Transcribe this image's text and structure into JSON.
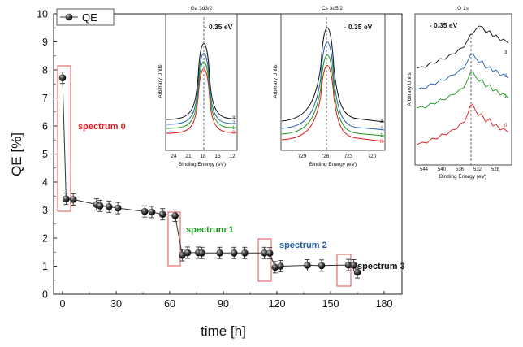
{
  "colors": {
    "red": "#e01818",
    "green": "#1a9a1a",
    "blue": "#1f5fa8",
    "black": "#111111",
    "box": "#e05050"
  },
  "chart_data": [
    {
      "type": "scatter",
      "xlabel": "time [h]",
      "ylabel": "QE [%]",
      "xlim": [
        -5,
        190
      ],
      "ylim": [
        0,
        10
      ],
      "xticks": [
        "0",
        "30",
        "60",
        "90",
        "120",
        "150",
        "180"
      ],
      "yticks": [
        "0",
        "1",
        "2",
        "3",
        "4",
        "5",
        "6",
        "7",
        "8",
        "9",
        "10"
      ],
      "legend": "QE",
      "series": [
        {
          "name": "QE",
          "points": [
            [
              0,
              7.72
            ],
            [
              2,
              3.4
            ],
            [
              6,
              3.38
            ],
            [
              19,
              3.2
            ],
            [
              21,
              3.15
            ],
            [
              26,
              3.12
            ],
            [
              31,
              3.07
            ],
            [
              46,
              2.95
            ],
            [
              50,
              2.93
            ],
            [
              56,
              2.85
            ],
            [
              63,
              2.8
            ],
            [
              67,
              1.39
            ],
            [
              70,
              1.48
            ],
            [
              76,
              1.48
            ],
            [
              78,
              1.47
            ],
            [
              88,
              1.47
            ],
            [
              96,
              1.47
            ],
            [
              102,
              1.47
            ],
            [
              113,
              1.47
            ],
            [
              116,
              1.46
            ],
            [
              119,
              0.96
            ],
            [
              122,
              1.0
            ],
            [
              137,
              1.03
            ],
            [
              145,
              1.02
            ],
            [
              160,
              1.04
            ],
            [
              163,
              1.03
            ],
            [
              165,
              0.78
            ]
          ]
        }
      ],
      "annotations": [
        {
          "label": "spectrum 0",
          "color": "red"
        },
        {
          "label": "spectrum 1",
          "color": "green"
        },
        {
          "label": "spectrum 2",
          "color": "blue"
        },
        {
          "label": "spectrum 3",
          "color": "black"
        }
      ]
    },
    {
      "type": "line",
      "title": "Ga 3d3/2",
      "xlabel": "Binding Energy (eV)",
      "ylabel": "Arbitrary Units",
      "xticks": [
        "24",
        "21",
        "18",
        "15",
        "12"
      ],
      "shift_label": "- 0.35 eV",
      "curve_labels": [
        "3",
        "2",
        "1",
        "0"
      ]
    },
    {
      "type": "line",
      "title": "Cs 3d5/2",
      "xlabel": "Binding Energy (eV)",
      "ylabel": "Arbitrary Units",
      "xticks": [
        "729",
        "726",
        "723",
        "720"
      ],
      "shift_label": "- 0.35 eV",
      "curve_labels": [
        "3",
        "2",
        "1",
        "0"
      ]
    },
    {
      "type": "line",
      "title": "O 1s",
      "xlabel": "Binding Energy (eV)",
      "ylabel": "Arbitrary Units",
      "xticks": [
        "544",
        "540",
        "536",
        "532",
        "528"
      ],
      "shift_label": "- 0.35 eV",
      "curve_labels": [
        "3",
        "2",
        "1",
        "0"
      ]
    }
  ]
}
